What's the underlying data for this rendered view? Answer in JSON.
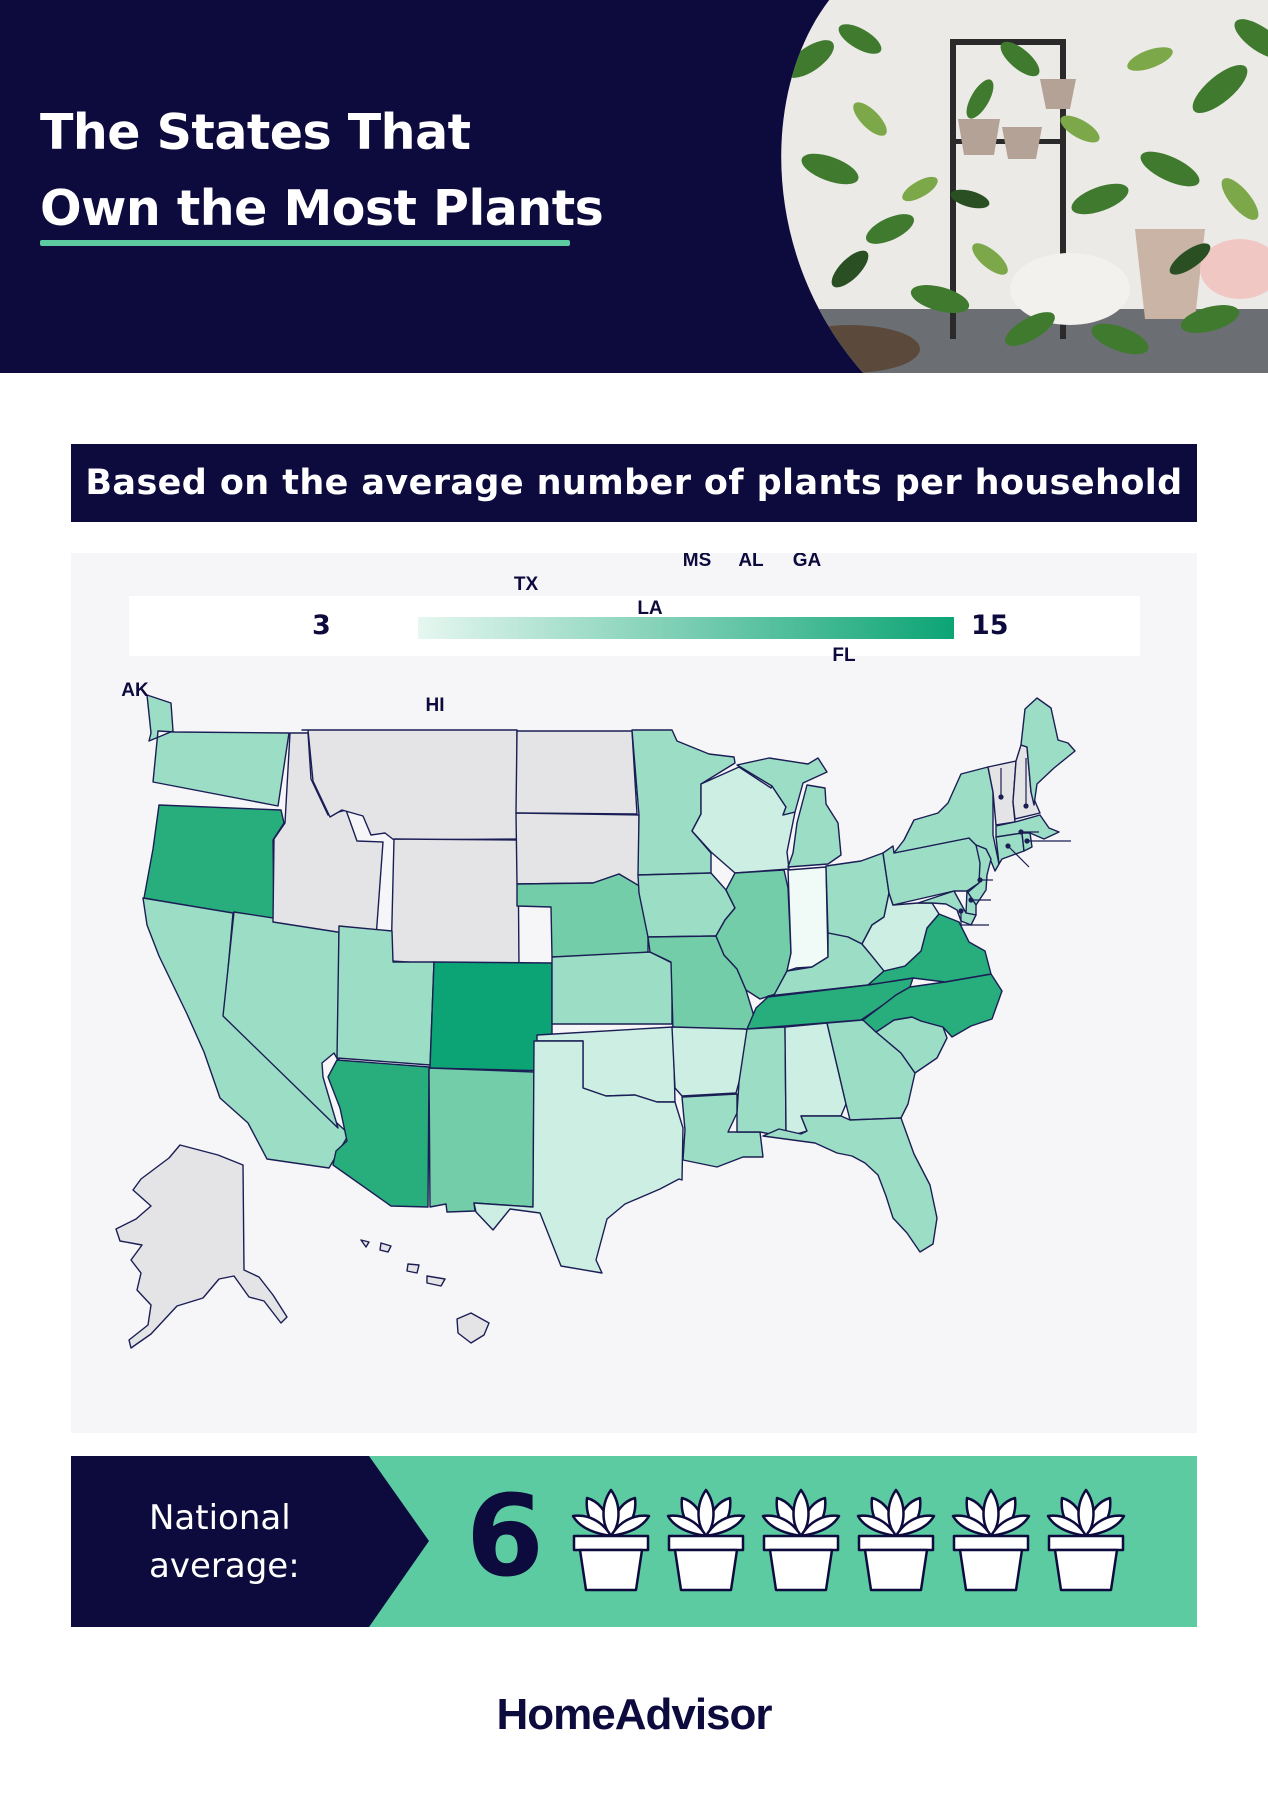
{
  "header": {
    "title_line1": "The States That",
    "title_line2": "Own the Most Plants"
  },
  "subtitle": "Based on the average number of plants per household",
  "legend": {
    "min": "3",
    "max": "15",
    "color_low": "#e6f7f0",
    "color_high": "#0ca474"
  },
  "map": {
    "no_data_color": "#e4e4e6",
    "states": [
      {
        "code": "WA",
        "level": "medium"
      },
      {
        "code": "OR",
        "level": "high"
      },
      {
        "code": "CA",
        "level": "medium"
      },
      {
        "code": "NV",
        "level": "medium"
      },
      {
        "code": "ID",
        "level": "no-data"
      },
      {
        "code": "MT",
        "level": "no-data"
      },
      {
        "code": "WY",
        "level": "no-data"
      },
      {
        "code": "UT",
        "level": "medium"
      },
      {
        "code": "AZ",
        "level": "high"
      },
      {
        "code": "CO",
        "level": "highest"
      },
      {
        "code": "NM",
        "level": "medium-high"
      },
      {
        "code": "ND",
        "level": "no-data"
      },
      {
        "code": "SD",
        "level": "no-data"
      },
      {
        "code": "NE",
        "level": "medium-high"
      },
      {
        "code": "KS",
        "level": "medium"
      },
      {
        "code": "OK",
        "level": "low"
      },
      {
        "code": "TX",
        "level": "low"
      },
      {
        "code": "MN",
        "level": "medium"
      },
      {
        "code": "IA",
        "level": "medium"
      },
      {
        "code": "MO",
        "level": "medium-high"
      },
      {
        "code": "AR",
        "level": "low"
      },
      {
        "code": "LA",
        "level": "medium"
      },
      {
        "code": "WI",
        "level": "low"
      },
      {
        "code": "IL",
        "level": "medium-high"
      },
      {
        "code": "MI",
        "level": "medium"
      },
      {
        "code": "IN",
        "level": "lowest"
      },
      {
        "code": "OH",
        "level": "medium"
      },
      {
        "code": "KY",
        "level": "medium"
      },
      {
        "code": "TN",
        "level": "high"
      },
      {
        "code": "MS",
        "level": "medium"
      },
      {
        "code": "AL",
        "level": "low"
      },
      {
        "code": "GA",
        "level": "medium"
      },
      {
        "code": "FL",
        "level": "medium"
      },
      {
        "code": "SC",
        "level": "medium"
      },
      {
        "code": "NC",
        "level": "high"
      },
      {
        "code": "VA",
        "level": "high"
      },
      {
        "code": "WV",
        "level": "low"
      },
      {
        "code": "PA",
        "level": "medium"
      },
      {
        "code": "NY",
        "level": "medium"
      },
      {
        "code": "VT",
        "level": "no-data"
      },
      {
        "code": "NH",
        "level": "no-data"
      },
      {
        "code": "ME",
        "level": "medium"
      },
      {
        "code": "MA",
        "level": "medium"
      },
      {
        "code": "RI",
        "level": "medium"
      },
      {
        "code": "CT",
        "level": "medium"
      },
      {
        "code": "NJ",
        "level": "medium"
      },
      {
        "code": "DE",
        "level": "medium"
      },
      {
        "code": "MD",
        "level": "medium"
      },
      {
        "code": "AK",
        "level": "no-data"
      },
      {
        "code": "HI",
        "level": "no-data"
      }
    ]
  },
  "national_average": {
    "label": "National\naverage:",
    "value": "6",
    "pot_count": 6
  },
  "brand": "HomeAdvisor"
}
